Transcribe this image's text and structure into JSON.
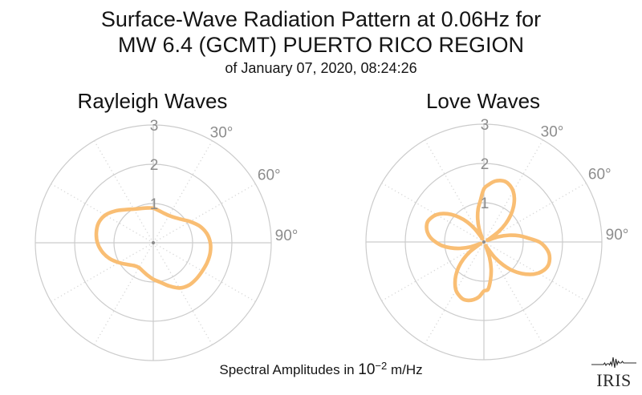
{
  "title": {
    "line1": "Surface-Wave Radiation Pattern at 0.06Hz for",
    "line2": "MW 6.4 (GCMT) PUERTO RICO REGION",
    "line3": "of January 07, 2020, 08:24:26"
  },
  "footer": {
    "prefix": "Spectral Amplitudes in ",
    "base": "10",
    "exponent": "−2",
    "suffix": " m/Hz"
  },
  "logo": {
    "text": "IRIS"
  },
  "style": {
    "curve_color": "#F9BE74",
    "grid_color": "#CCCCCC",
    "dotted_color": "#D9D9D9",
    "tick_label_color": "#8D8D8D",
    "text_color": "#141414",
    "logo_color": "#2B2B2B",
    "background": "#FFFFFF"
  },
  "chart_data": [
    {
      "type": "polar-line",
      "title": "Rayleigh Waves",
      "theta_zero": "top",
      "theta_direction": "clockwise",
      "rlim": [
        0,
        3
      ],
      "r_ticks": [
        1,
        2,
        3
      ],
      "spoke_step_deg": 30,
      "theta_tick_labels": [
        {
          "angle_deg": 30,
          "label": "30°"
        },
        {
          "angle_deg": 60,
          "label": "60°"
        },
        {
          "angle_deg": 90,
          "label": "90°"
        }
      ],
      "amplitude_units": "10^-2 m/Hz",
      "series": {
        "name": "rayleigh-radiation-pattern",
        "color": "#F9BE74",
        "angles_deg": [
          0,
          10,
          20,
          30,
          40,
          50,
          60,
          70,
          80,
          90,
          100,
          110,
          120,
          130,
          140,
          150,
          160,
          170,
          180,
          190,
          200,
          210,
          220,
          230,
          240,
          250,
          260,
          270,
          280,
          290,
          300,
          310,
          320,
          330,
          340,
          350
        ],
        "radii": [
          0.88,
          0.83,
          0.8,
          0.8,
          0.84,
          0.93,
          1.08,
          1.25,
          1.38,
          1.45,
          1.47,
          1.46,
          1.44,
          1.43,
          1.41,
          1.33,
          1.17,
          1.02,
          0.93,
          0.84,
          0.77,
          0.73,
          0.76,
          0.86,
          1.01,
          1.18,
          1.32,
          1.42,
          1.47,
          1.48,
          1.41,
          1.26,
          1.1,
          0.99,
          0.93,
          0.9
        ]
      }
    },
    {
      "type": "polar-line",
      "title": "Love Waves",
      "theta_zero": "top",
      "theta_direction": "clockwise",
      "rlim": [
        0,
        3
      ],
      "r_ticks": [
        1,
        2,
        3
      ],
      "spoke_step_deg": 30,
      "theta_tick_labels": [
        {
          "angle_deg": 30,
          "label": "30°"
        },
        {
          "angle_deg": 60,
          "label": "60°"
        },
        {
          "angle_deg": 90,
          "label": "90°"
        }
      ],
      "amplitude_units": "10^-2 m/Hz",
      "series": {
        "name": "love-radiation-pattern",
        "color": "#F9BE74",
        "angles_deg": [
          0,
          5,
          10,
          15,
          20,
          25,
          30,
          35,
          40,
          45,
          50,
          55,
          60,
          65,
          70,
          75,
          80,
          85,
          90,
          95,
          100,
          105,
          110,
          115,
          120,
          125,
          130,
          135,
          140,
          145,
          150,
          155,
          160,
          165,
          170,
          175,
          180,
          185,
          190,
          195,
          200,
          205,
          210,
          215,
          220,
          225,
          230,
          235,
          240,
          245,
          250,
          255,
          260,
          265,
          270,
          275,
          280,
          285,
          290,
          295,
          300,
          305,
          310,
          315,
          320,
          325,
          330,
          335,
          340,
          345,
          350,
          355
        ],
        "radii": [
          1.35,
          1.47,
          1.57,
          1.62,
          1.63,
          1.58,
          1.49,
          1.35,
          1.17,
          0.96,
          0.72,
          0.45,
          0.17,
          0.11,
          0.39,
          0.66,
          0.91,
          1.13,
          1.41,
          1.57,
          1.68,
          1.73,
          1.74,
          1.69,
          1.59,
          1.44,
          1.25,
          1.03,
          0.77,
          0.48,
          0.18,
          0.12,
          0.42,
          0.71,
          0.97,
          1.21,
          1.25,
          1.4,
          1.49,
          1.54,
          1.55,
          1.5,
          1.42,
          1.28,
          1.11,
          0.91,
          0.68,
          0.43,
          0.16,
          0.1,
          0.37,
          0.63,
          0.86,
          1.07,
          1.23,
          1.37,
          1.46,
          1.51,
          1.52,
          1.47,
          1.39,
          1.26,
          1.09,
          0.89,
          0.67,
          0.42,
          0.16,
          0.1,
          0.36,
          0.61,
          0.85,
          1.05
        ]
      }
    }
  ]
}
